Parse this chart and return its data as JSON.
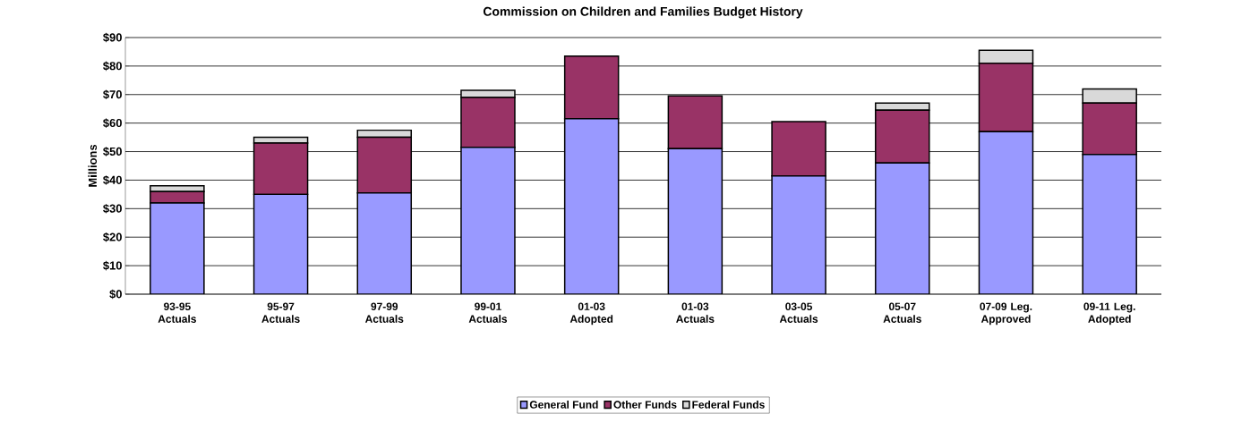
{
  "chart_data": {
    "type": "bar",
    "stacked": true,
    "title": "Commission on Children and Families Budget History",
    "ylabel": "Millions",
    "categories": [
      "93-95 Actuals",
      "95-97 Actuals",
      "97-99 Actuals",
      "99-01 Actuals",
      "01-03 Adopted",
      "01-03 Actuals",
      "03-05 Actuals",
      "05-07 Actuals",
      "07-09 Leg. Approved",
      "09-11 Leg. Adopted"
    ],
    "series": [
      {
        "name": "General Fund",
        "color": "#9999ff",
        "values": [
          32,
          35,
          35.5,
          51.5,
          61.5,
          51,
          41.5,
          46,
          57,
          49
        ]
      },
      {
        "name": "Other Funds",
        "color": "#993366",
        "values": [
          4,
          18,
          19.5,
          17.5,
          22,
          18.5,
          19,
          18.5,
          24,
          18
        ]
      },
      {
        "name": "Federal Funds",
        "color": "#d9d9d9",
        "values": [
          2,
          2,
          2.5,
          2.5,
          null,
          null,
          null,
          2.5,
          4.5,
          5
        ]
      }
    ],
    "ylim": [
      0,
      90
    ],
    "yticks": [
      {
        "value": 0,
        "label": "$0"
      },
      {
        "value": 10,
        "label": "$10"
      },
      {
        "value": 20,
        "label": "$20"
      },
      {
        "value": 30,
        "label": "$30"
      },
      {
        "value": 40,
        "label": "$40"
      },
      {
        "value": 50,
        "label": "$50"
      },
      {
        "value": 60,
        "label": "$60"
      },
      {
        "value": 70,
        "label": "$70"
      },
      {
        "value": 80,
        "label": "$80"
      },
      {
        "value": 90,
        "label": "$90"
      }
    ],
    "grid": "y",
    "legend": "bottom"
  }
}
